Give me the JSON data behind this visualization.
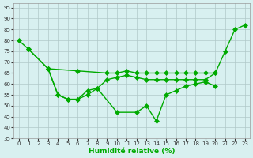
{
  "xlabel": "Humidité relative (%)",
  "xlim": [
    -0.5,
    23.5
  ],
  "ylim": [
    35,
    97
  ],
  "yticks": [
    35,
    40,
    45,
    50,
    55,
    60,
    65,
    70,
    75,
    80,
    85,
    90,
    95
  ],
  "xticks": [
    0,
    1,
    2,
    3,
    4,
    5,
    6,
    7,
    8,
    9,
    10,
    11,
    12,
    13,
    14,
    15,
    16,
    17,
    18,
    19,
    20,
    21,
    22,
    23
  ],
  "line_color": "#00aa00",
  "markersize": 3,
  "linewidth": 1.0,
  "bg_color": "#d8f0f0",
  "grid_color": "#b0c8c8",
  "lines": [
    {
      "x": [
        0,
        1,
        3,
        6,
        9,
        10,
        11,
        12,
        13,
        14,
        15,
        16,
        17,
        18,
        19,
        20,
        21,
        22,
        23
      ],
      "y": [
        80,
        76,
        67,
        66,
        65,
        65,
        66,
        65,
        65,
        65,
        65,
        65,
        65,
        65,
        65,
        65,
        75,
        85,
        87
      ]
    },
    {
      "x": [
        3,
        4,
        5,
        6,
        7,
        8,
        9,
        10,
        11,
        12,
        13,
        14,
        15,
        16,
        17,
        18,
        19,
        20
      ],
      "y": [
        67,
        55,
        53,
        53,
        55,
        58,
        62,
        63,
        64,
        63,
        62,
        62,
        62,
        62,
        62,
        62,
        62,
        65
      ]
    },
    {
      "x": [
        1,
        3,
        4,
        5,
        6,
        7,
        8,
        10,
        12,
        13,
        14,
        15,
        16,
        17,
        18,
        19,
        20
      ],
      "y": [
        76,
        67,
        55,
        53,
        53,
        57,
        58,
        47,
        47,
        50,
        43,
        55,
        57,
        59,
        60,
        61,
        59
      ]
    }
  ]
}
